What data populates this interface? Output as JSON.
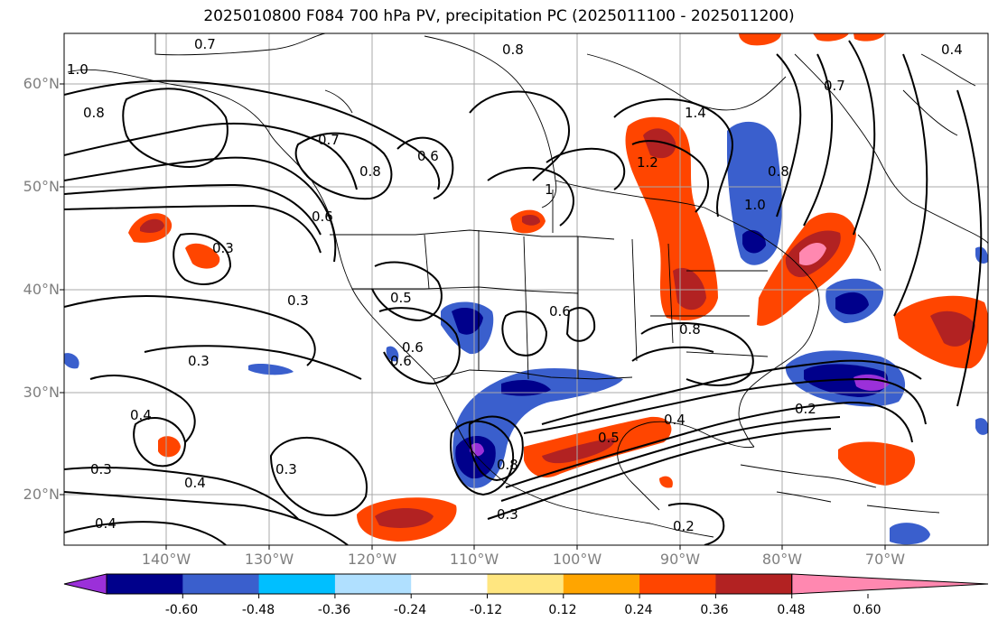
{
  "title": "2025010800 F084 700 hPa PV, precipitation PC (2025011100 - 2025011200)",
  "lat_labels": [
    "60°N",
    "50°N",
    "40°N",
    "30°N",
    "20°N"
  ],
  "lon_labels": [
    "140°W",
    "130°W",
    "120°W",
    "110°W",
    "100°W",
    "90°W",
    "80°W",
    "70°W"
  ],
  "contour_labels": [
    "0.7",
    "0.8",
    "0.4",
    "1.0",
    "0.8",
    "0.7",
    "0.6",
    "0.8",
    "0.6",
    "1",
    "1.4",
    "1.2",
    "1.0",
    "0.8",
    "0.7",
    "0.3",
    "0.3",
    "0.5",
    "0.6",
    "0.6",
    "0.3",
    "0.6",
    "0.8",
    "0.4",
    "0.5",
    "0.2",
    "0.4",
    "0.3",
    "0.4",
    "0.8",
    "0.3",
    "0.2",
    "0.3",
    "0.4"
  ],
  "colorbar": {
    "labels": [
      "-0.60",
      "-0.48",
      "-0.36",
      "-0.24",
      "-0.12",
      "0.12",
      "0.24",
      "0.36",
      "0.48",
      "0.60"
    ],
    "colors": [
      "#9b30d9",
      "#00008b",
      "#3a5fcd",
      "#00bfff",
      "#b0e0ff",
      "#ffffff",
      "#ffe680",
      "#ffa500",
      "#ff4500",
      "#b22222",
      "#ff88b0"
    ]
  },
  "colors": {
    "coast": "#000000",
    "grid": "#a9a9a9",
    "contour": "#000000"
  }
}
